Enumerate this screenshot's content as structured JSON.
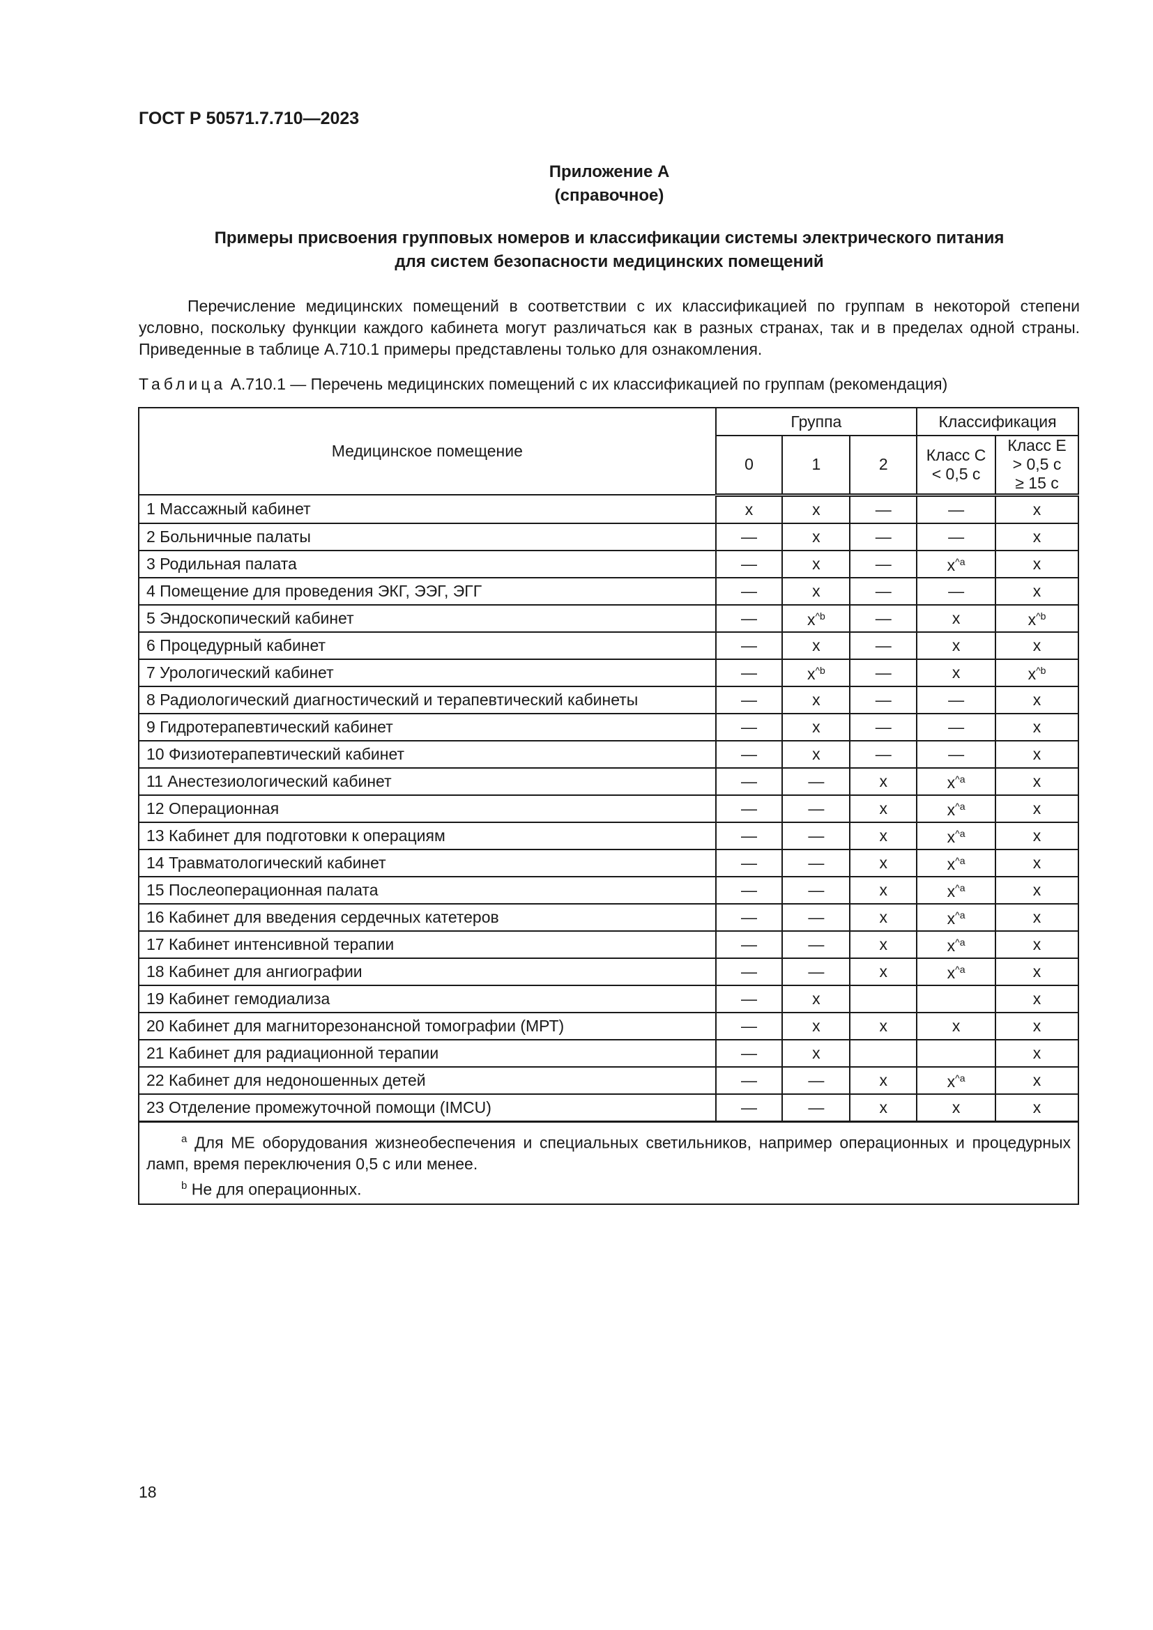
{
  "header": {
    "doc_id": "ГОСТ Р 50571.7.710—2023"
  },
  "annex": {
    "title": "Приложение А",
    "type": "(справочное)"
  },
  "heading": {
    "line1": "Примеры присвоения групповых номеров и классификации системы электрического питания",
    "line2": "для систем безопасности медицинских помещений"
  },
  "intro": "Перечисление медицинских помещений в соответствии с их классификацией по группам в некоторой степени условно, поскольку функции каждого кабинета могут различаться как в разных странах, так и в пределах одной страны. Приведенные в таблице А.710.1 примеры представлены только для ознакомления.",
  "caption": {
    "label": "Таблица",
    "text": "А.710.1 — Перечень медицинских помещений с их классификацией по группам (рекомендация)"
  },
  "table": {
    "col_room": "Медицинское помещение",
    "col_group": "Группа",
    "col_class": "Классификация",
    "groups": [
      "0",
      "1",
      "2"
    ],
    "class_c": [
      "Класс С",
      "< 0,5 с"
    ],
    "class_e": [
      "Класс Е",
      "> 0,5 с",
      "≥ 15 с"
    ],
    "rows": [
      [
        "1 Массажный кабинет",
        "x",
        "x",
        "—",
        "—",
        "x"
      ],
      [
        "2 Больничные палаты",
        "—",
        "x",
        "—",
        "—",
        "x"
      ],
      [
        "3 Родильная палата",
        "—",
        "x",
        "—",
        "x^a",
        "x"
      ],
      [
        "4 Помещение для проведения ЭКГ, ЭЭГ, ЭГГ",
        "—",
        "x",
        "—",
        "—",
        "x"
      ],
      [
        "5 Эндоскопический кабинет",
        "—",
        "x^b",
        "—",
        "x",
        "x^b"
      ],
      [
        "6 Процедурный кабинет",
        "—",
        "x",
        "—",
        "x",
        "x"
      ],
      [
        "7 Урологический кабинет",
        "—",
        "x^b",
        "—",
        "x",
        "x^b"
      ],
      [
        "8 Радиологический диагностический и терапевтический кабинеты",
        "—",
        "x",
        "—",
        "—",
        "x"
      ],
      [
        "9 Гидротерапевтический кабинет",
        "—",
        "x",
        "—",
        "—",
        "x"
      ],
      [
        "10 Физиотерапевтический кабинет",
        "—",
        "x",
        "—",
        "—",
        "x"
      ],
      [
        "11 Анестезиологический кабинет",
        "—",
        "—",
        "x",
        "x^a",
        "x"
      ],
      [
        "12 Операционная",
        "—",
        "—",
        "x",
        "x^a",
        "x"
      ],
      [
        "13 Кабинет для подготовки к операциям",
        "—",
        "—",
        "x",
        "x^a",
        "x"
      ],
      [
        "14 Травматологический кабинет",
        "—",
        "—",
        "x",
        "x^a",
        "x"
      ],
      [
        "15 Послеоперационная палата",
        "—",
        "—",
        "x",
        "x^a",
        "x"
      ],
      [
        "16 Кабинет для введения сердечных катетеров",
        "—",
        "—",
        "x",
        "x^a",
        "x"
      ],
      [
        "17 Кабинет интенсивной терапии",
        "—",
        "—",
        "x",
        "x^a",
        "x"
      ],
      [
        "18 Кабинет для ангиографии",
        "—",
        "—",
        "x",
        "x^a",
        "x"
      ],
      [
        "19 Кабинет гемодиализа",
        "—",
        "x",
        "",
        "",
        "x"
      ],
      [
        "20 Кабинет для магниторезонансной томографии (МРТ)",
        "—",
        "x",
        "x",
        "x",
        "x"
      ],
      [
        "21 Кабинет для радиационной терапии",
        "—",
        "x",
        "",
        "",
        "x"
      ],
      [
        "22 Кабинет для недоношенных детей",
        "—",
        "—",
        "x",
        "x^a",
        "x"
      ],
      [
        "23 Отделение промежуточной помощи (IMCU)",
        "—",
        "—",
        "x",
        "x",
        "x"
      ]
    ],
    "footnotes": [
      {
        "mark": "a",
        "text": "Для МЕ оборудования жизнеобеспечения и специальных светильников, например операционных и процедурных ламп, время переключения 0,5 с или менее."
      },
      {
        "mark": "b",
        "text": "Не для операционных."
      }
    ]
  },
  "page_number": "18"
}
